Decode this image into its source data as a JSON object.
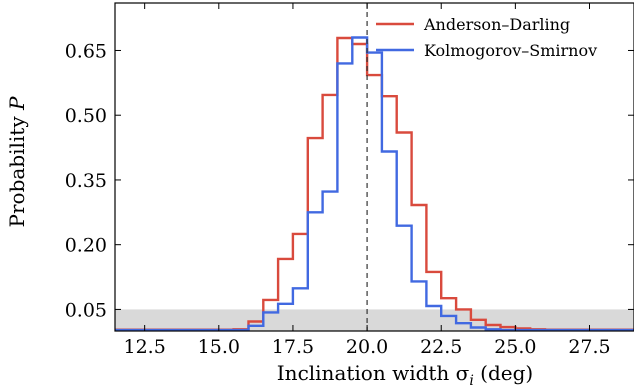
{
  "chart_data": {
    "type": "line",
    "step": true,
    "xlabel": "Inclination width σ",
    "xlabel_subscript": "i",
    "xlabel_unit": " (deg)",
    "ylabel": "Probability ",
    "ylabel_symbol": "P",
    "xlim": [
      11.5,
      29.0
    ],
    "ylim": [
      0.0,
      0.76
    ],
    "xticks": [
      12.5,
      15.0,
      17.5,
      20.0,
      22.5,
      25.0,
      27.5
    ],
    "xtick_labels": [
      "12.5",
      "15.0",
      "17.5",
      "20.0",
      "22.5",
      "25.0",
      "27.5"
    ],
    "yticks": [
      0.05,
      0.2,
      0.35,
      0.5,
      0.65
    ],
    "ytick_labels": [
      "0.05",
      "0.20",
      "0.35",
      "0.50",
      "0.65"
    ],
    "bin_edges": [
      11.5,
      12.0,
      12.5,
      13.0,
      13.5,
      14.0,
      14.5,
      15.0,
      15.5,
      16.0,
      16.5,
      17.0,
      17.5,
      18.0,
      18.5,
      19.0,
      19.5,
      20.0,
      20.5,
      21.0,
      21.5,
      22.0,
      22.5,
      23.0,
      23.5,
      24.0,
      24.5,
      25.0,
      25.5,
      26.0,
      26.5,
      27.0,
      27.5,
      28.0,
      28.5,
      29.0
    ],
    "series": [
      {
        "name": "Anderson–Darling",
        "color": "#d94a3d",
        "values": [
          0.003,
          0.003,
          0.003,
          0.003,
          0.003,
          0.003,
          0.003,
          0.003,
          0.004,
          0.022,
          0.072,
          0.167,
          0.225,
          0.447,
          0.547,
          0.679,
          0.665,
          0.593,
          0.544,
          0.46,
          0.292,
          0.137,
          0.076,
          0.05,
          0.026,
          0.014,
          0.009,
          0.006,
          0.004,
          0.003,
          0.003,
          0.003,
          0.003,
          0.003,
          0.003
        ]
      },
      {
        "name": "Kolmogorov–Smirnov",
        "color": "#4169e1",
        "values": [
          0.002,
          0.002,
          0.002,
          0.002,
          0.002,
          0.002,
          0.002,
          0.002,
          0.002,
          0.012,
          0.043,
          0.063,
          0.099,
          0.275,
          0.323,
          0.62,
          0.68,
          0.645,
          0.416,
          0.244,
          0.115,
          0.058,
          0.035,
          0.018,
          0.008,
          0.004,
          0.002,
          0.002,
          0.002,
          0.002,
          0.002,
          0.002,
          0.002,
          0.002,
          0.002
        ]
      }
    ],
    "reference_line_x": 20.0,
    "shaded_band_y": [
      0.0,
      0.05
    ],
    "legend_position": "top-right",
    "grid": false
  }
}
